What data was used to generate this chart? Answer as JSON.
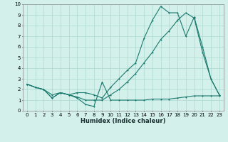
{
  "xlabel": "Humidex (Indice chaleur)",
  "xlim": [
    -0.5,
    23.5
  ],
  "ylim": [
    0,
    10
  ],
  "xticks": [
    0,
    1,
    2,
    3,
    4,
    5,
    6,
    7,
    8,
    9,
    10,
    11,
    12,
    13,
    14,
    15,
    16,
    17,
    18,
    19,
    20,
    21,
    22,
    23
  ],
  "yticks": [
    0,
    1,
    2,
    3,
    4,
    5,
    6,
    7,
    8,
    9,
    10
  ],
  "bg_color": "#d4f0eb",
  "grid_color": "#aad8d0",
  "line_color": "#1a7a6e",
  "line1_x": [
    0,
    1,
    2,
    3,
    4,
    5,
    6,
    7,
    8,
    9,
    10,
    11,
    12,
    13,
    14,
    15,
    16,
    17,
    18,
    19,
    20,
    21,
    22,
    23
  ],
  "line1_y": [
    2.5,
    2.2,
    2.0,
    1.2,
    1.7,
    1.5,
    1.2,
    0.6,
    0.4,
    2.7,
    1.0,
    1.0,
    1.0,
    1.0,
    1.0,
    1.1,
    1.1,
    1.1,
    1.2,
    1.3,
    1.4,
    1.4,
    1.4,
    1.4
  ],
  "line2_x": [
    0,
    1,
    2,
    3,
    4,
    5,
    6,
    7,
    8,
    9,
    10,
    11,
    12,
    13,
    14,
    15,
    16,
    17,
    18,
    19,
    20,
    21,
    22,
    23
  ],
  "line2_y": [
    2.5,
    2.2,
    2.0,
    1.5,
    1.7,
    1.5,
    1.3,
    1.0,
    1.0,
    1.0,
    1.5,
    2.0,
    2.7,
    3.5,
    4.5,
    5.5,
    6.7,
    7.5,
    8.5,
    9.2,
    8.7,
    5.5,
    3.0,
    1.5
  ],
  "line3_x": [
    0,
    1,
    2,
    3,
    4,
    5,
    6,
    7,
    8,
    9,
    10,
    11,
    12,
    13,
    14,
    15,
    16,
    17,
    18,
    19,
    20,
    21,
    22,
    23
  ],
  "line3_y": [
    2.5,
    2.2,
    2.0,
    1.2,
    1.7,
    1.5,
    1.7,
    1.7,
    1.5,
    1.2,
    2.2,
    3.0,
    3.8,
    4.5,
    6.8,
    8.5,
    9.8,
    9.2,
    9.2,
    7.0,
    8.8,
    6.0,
    3.0,
    1.5
  ]
}
